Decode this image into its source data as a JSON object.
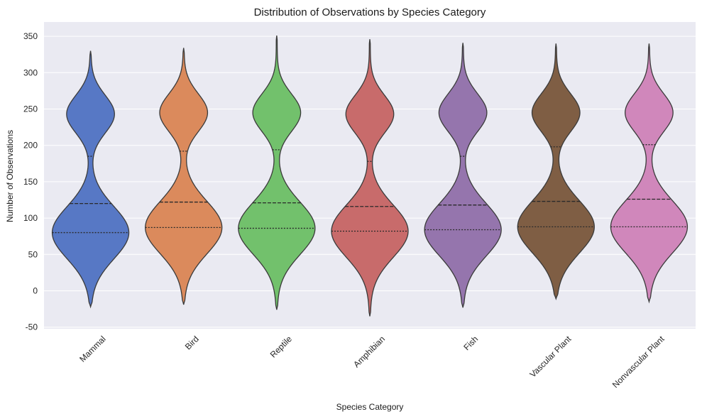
{
  "chart_data": {
    "type": "violin",
    "title": "Distribution of Observations by Species Category",
    "xlabel": "Species Category",
    "ylabel": "Number of Observations",
    "ylim": [
      -55,
      370
    ],
    "yticks": [
      -50,
      0,
      50,
      100,
      150,
      200,
      250,
      300,
      350
    ],
    "grid": true,
    "background": "#eaeaf2",
    "categories": [
      "Mammal",
      "Bird",
      "Reptile",
      "Amphibian",
      "Fish",
      "Vascular Plant",
      "Nonvascular Plant"
    ],
    "colors": [
      "#5778c5",
      "#db8a5c",
      "#72c16c",
      "#c86b6b",
      "#9575ad",
      "#7f5e44",
      "#d087bb"
    ],
    "violins": [
      {
        "min": -22,
        "max": 330,
        "q1": 80,
        "median": 120,
        "q3": 185,
        "low_peak": 80,
        "high_peak": 243
      },
      {
        "min": -19,
        "max": 334,
        "q1": 87,
        "median": 122,
        "q3": 192,
        "low_peak": 87,
        "high_peak": 245
      },
      {
        "min": -26,
        "max": 351,
        "q1": 86,
        "median": 121,
        "q3": 194,
        "low_peak": 86,
        "high_peak": 245
      },
      {
        "min": -35,
        "max": 346,
        "q1": 82,
        "median": 116,
        "q3": 178,
        "low_peak": 82,
        "high_peak": 243
      },
      {
        "min": -23,
        "max": 341,
        "q1": 84,
        "median": 118,
        "q3": 185,
        "low_peak": 84,
        "high_peak": 245
      },
      {
        "min": -11,
        "max": 340,
        "q1": 88,
        "median": 123,
        "q3": 198,
        "low_peak": 88,
        "high_peak": 245
      },
      {
        "min": -15,
        "max": 340,
        "q1": 88,
        "median": 126,
        "q3": 201,
        "low_peak": 88,
        "high_peak": 245
      }
    ]
  }
}
